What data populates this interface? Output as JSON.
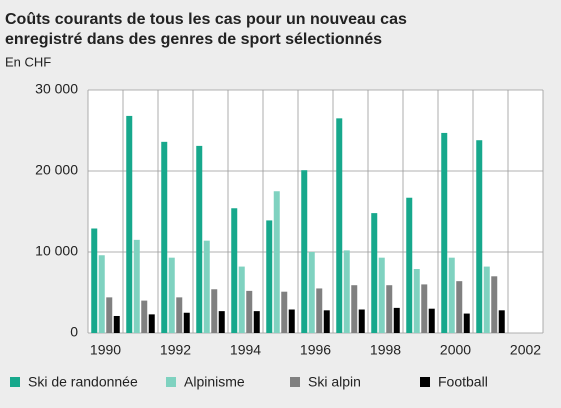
{
  "chart_data": {
    "type": "bar",
    "title": [
      "Coûts courants de tous les cas pour un nouveau cas",
      "enregistré dans des genres de sport sélectionnés"
    ],
    "subtitle": "En CHF",
    "categories": [
      "1990",
      null,
      "1992",
      null,
      "1994",
      null,
      "1996",
      null,
      "1998",
      null,
      "2000",
      null,
      "2002"
    ],
    "series": [
      {
        "name": "Ski de randonnée",
        "color": "#17a88c",
        "values": [
          12900,
          26800,
          23600,
          23100,
          15400,
          13900,
          20100,
          26500,
          14800,
          16700,
          24700,
          23800,
          null
        ]
      },
      {
        "name": "Alpinisme",
        "color": "#7fd2c0",
        "values": [
          9600,
          11500,
          9300,
          11400,
          8200,
          17500,
          10000,
          10200,
          9300,
          7900,
          9300,
          8200,
          null
        ]
      },
      {
        "name": "Ski alpin",
        "color": "#808080",
        "values": [
          4400,
          4000,
          4400,
          5400,
          5200,
          5100,
          5500,
          5900,
          5900,
          6000,
          6400,
          7000,
          null
        ]
      },
      {
        "name": "Football",
        "color": "#000000",
        "values": [
          2100,
          2300,
          2500,
          2700,
          2700,
          2900,
          2800,
          2900,
          3100,
          3000,
          2400,
          2800,
          null
        ]
      }
    ],
    "ylim": [
      0,
      30000
    ],
    "yticks": [
      0,
      {
        "value": 10000,
        "label": "10 000"
      },
      {
        "value": 20000,
        "label": "20 000"
      },
      {
        "value": 30000,
        "label": "30 000"
      }
    ],
    "grid": true,
    "legend": "bottom"
  }
}
